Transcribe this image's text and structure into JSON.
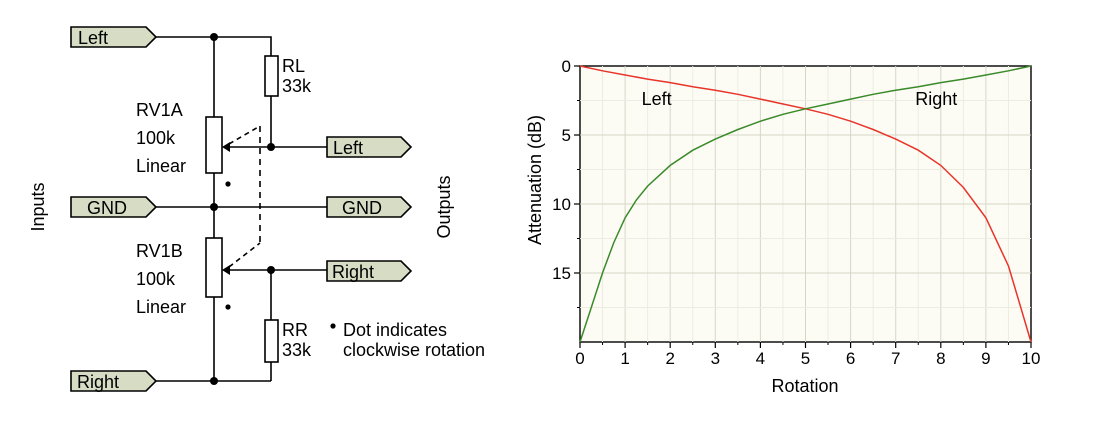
{
  "schematic": {
    "side_labels": {
      "inputs": "Inputs",
      "outputs": "Outputs"
    },
    "ports": {
      "in_left": "Left",
      "in_gnd": "GND",
      "in_right": "Right",
      "out_left": "Left",
      "out_gnd": "GND",
      "out_right": "Right"
    },
    "pots": [
      {
        "ref": "RV1A",
        "value": "100k",
        "taper": "Linear"
      },
      {
        "ref": "RV1B",
        "value": "100k",
        "taper": "Linear"
      }
    ],
    "resistors": [
      {
        "ref": "RL",
        "value": "33k"
      },
      {
        "ref": "RR",
        "value": "33k"
      }
    ],
    "note": {
      "bullet": "•",
      "line1": "Dot indicates",
      "line2": "clockwise rotation"
    }
  },
  "chart_data": {
    "type": "line",
    "xlabel": "Rotation",
    "ylabel": "Attenuation (dB)",
    "xlim": [
      0,
      10
    ],
    "ylim": [
      0,
      20
    ],
    "y_inverted": true,
    "x_ticks": [
      0,
      1,
      2,
      3,
      4,
      5,
      6,
      7,
      8,
      9,
      10
    ],
    "y_ticks": [
      0,
      5,
      10,
      15
    ],
    "grid": true,
    "series": [
      {
        "name": "Left",
        "color": "#e8342a",
        "x": [
          0,
          0.5,
          1,
          1.5,
          2,
          2.5,
          3,
          3.5,
          4,
          4.5,
          5,
          5.5,
          6,
          6.5,
          7,
          7.5,
          8,
          8.5,
          9,
          9.5,
          10
        ],
        "y": [
          0,
          0.35,
          0.65,
          0.95,
          1.2,
          1.5,
          1.75,
          2.05,
          2.4,
          2.75,
          3.1,
          3.5,
          4.0,
          4.6,
          5.3,
          6.1,
          7.2,
          8.8,
          11.0,
          14.5,
          20.0
        ]
      },
      {
        "name": "Right",
        "color": "#3a8a2a",
        "x": [
          0,
          0.25,
          0.5,
          0.75,
          1,
          1.25,
          1.5,
          2,
          2.5,
          3,
          3.5,
          4,
          4.5,
          5,
          5.5,
          6,
          6.5,
          7,
          7.5,
          8,
          8.5,
          9,
          9.5,
          10
        ],
        "y": [
          20.0,
          17.5,
          15.0,
          12.8,
          11.0,
          9.7,
          8.7,
          7.2,
          6.1,
          5.3,
          4.6,
          4.0,
          3.5,
          3.1,
          2.75,
          2.4,
          2.05,
          1.75,
          1.5,
          1.2,
          0.95,
          0.65,
          0.35,
          0
        ]
      }
    ]
  }
}
